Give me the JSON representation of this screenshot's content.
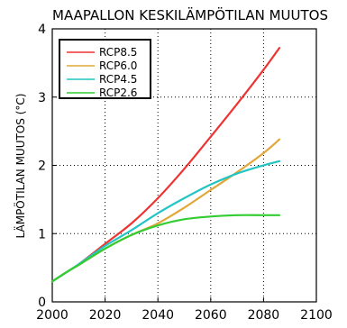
{
  "chart_data": {
    "type": "line",
    "title": "MAAPALLON KESKILÄMPÖTILAN MUUTOS",
    "ylabel": "LÄMPÖTILAN MUUTOS (°C)",
    "xlabel": "",
    "xlim": [
      2000,
      2100
    ],
    "ylim": [
      0,
      4
    ],
    "xticks": [
      2000,
      2020,
      2040,
      2060,
      2080,
      2100
    ],
    "yticks": [
      0,
      1,
      2,
      3,
      4
    ],
    "grid": true,
    "legend_position": "top-left",
    "series": [
      {
        "name": "RCP8.5",
        "color": "#ee3333",
        "x": [
          2000,
          2006,
          2010,
          2020,
          2030,
          2040,
          2050,
          2060,
          2070,
          2080,
          2086
        ],
        "y": [
          0.3,
          0.45,
          0.55,
          0.85,
          1.15,
          1.52,
          1.95,
          2.42,
          2.9,
          3.4,
          3.72
        ]
      },
      {
        "name": "RCP6.0",
        "color": "#e0a83a",
        "x": [
          2000,
          2006,
          2010,
          2020,
          2030,
          2040,
          2050,
          2060,
          2070,
          2080,
          2086
        ],
        "y": [
          0.3,
          0.45,
          0.54,
          0.78,
          0.98,
          1.15,
          1.38,
          1.64,
          1.9,
          2.18,
          2.38
        ]
      },
      {
        "name": "RCP4.5",
        "color": "#22c4c4",
        "x": [
          2000,
          2006,
          2010,
          2020,
          2030,
          2040,
          2050,
          2060,
          2070,
          2080,
          2086
        ],
        "y": [
          0.3,
          0.45,
          0.55,
          0.82,
          1.05,
          1.3,
          1.52,
          1.72,
          1.88,
          2.0,
          2.06
        ]
      },
      {
        "name": "RCP2.6",
        "color": "#33cc33",
        "x": [
          2000,
          2006,
          2010,
          2020,
          2030,
          2040,
          2050,
          2060,
          2070,
          2080,
          2086
        ],
        "y": [
          0.3,
          0.45,
          0.54,
          0.78,
          0.98,
          1.12,
          1.21,
          1.25,
          1.27,
          1.27,
          1.27
        ]
      }
    ]
  }
}
